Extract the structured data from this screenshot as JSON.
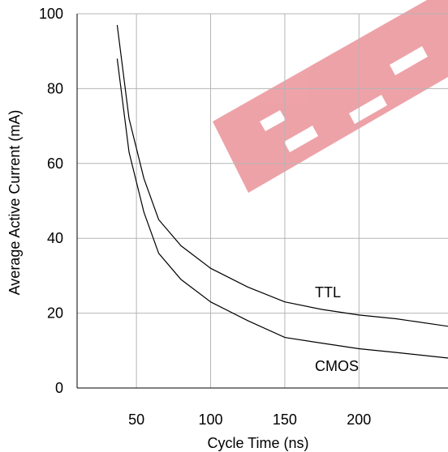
{
  "chart_data": {
    "type": "line",
    "xlabel": "Cycle Time (ns)",
    "ylabel": "Average Active Current (mA)",
    "xlim": [
      10,
      260
    ],
    "ylim": [
      0,
      100
    ],
    "x_ticks": [
      50,
      100,
      150,
      200
    ],
    "y_ticks": [
      0,
      20,
      40,
      60,
      80,
      100
    ],
    "grid": true,
    "series": [
      {
        "name": "TTL",
        "x": [
          37,
          45,
          55,
          65,
          80,
          100,
          125,
          150,
          175,
          200,
          225,
          260
        ],
        "y": [
          97,
          72,
          56,
          45,
          38,
          32,
          27,
          23,
          21,
          19.5,
          18.5,
          16.5
        ]
      },
      {
        "name": "CMOS",
        "x": [
          37,
          45,
          55,
          65,
          80,
          100,
          125,
          150,
          175,
          200,
          225,
          260
        ],
        "y": [
          88,
          63,
          47,
          36,
          29,
          23,
          18,
          13.5,
          12,
          10.5,
          9.5,
          8
        ]
      }
    ]
  },
  "colors": {
    "watermark": "#e8848c",
    "grid": "#b5b5b5",
    "line": "#000000"
  },
  "watermark_text": "EEPW"
}
